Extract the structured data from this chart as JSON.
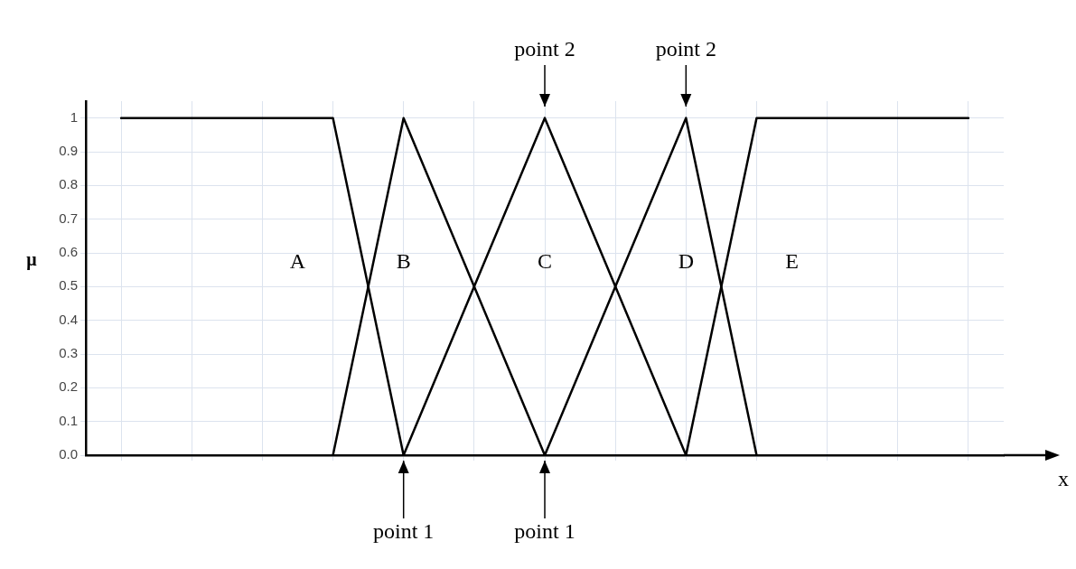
{
  "chart_data": {
    "type": "line",
    "xlabel": "x",
    "ylabel": "μ",
    "categories": [
      null,
      null,
      null,
      null,
      null,
      null,
      null,
      null,
      null,
      null,
      null,
      null,
      null
    ],
    "ylim": [
      0,
      1.05
    ],
    "yticks": [
      {
        "value": 0,
        "label": "0.0"
      },
      0.1,
      0.2,
      0.3,
      0.4,
      0.5,
      0.6,
      0.7,
      0.8,
      0.9,
      1
    ],
    "tick_labels": "y",
    "grid": true,
    "line_style": "solid",
    "series": [
      {
        "name": "A",
        "color": "#000000",
        "values": [
          1,
          1,
          1,
          1,
          0,
          null,
          null,
          null,
          null,
          null,
          null,
          null,
          null
        ]
      },
      {
        "name": "B",
        "color": "#000000",
        "values": [
          null,
          null,
          null,
          0,
          1,
          0.5,
          0,
          null,
          null,
          null,
          null,
          null,
          null
        ]
      },
      {
        "name": "C",
        "color": "#000000",
        "values": [
          null,
          null,
          null,
          null,
          0,
          0.5,
          1,
          0.5,
          0,
          null,
          null,
          null,
          null
        ]
      },
      {
        "name": "D",
        "color": "#000000",
        "values": [
          null,
          null,
          null,
          null,
          null,
          null,
          0,
          0.5,
          1,
          0,
          null,
          null,
          null
        ]
      },
      {
        "name": "E",
        "color": "#000000",
        "values": [
          null,
          null,
          null,
          null,
          null,
          null,
          null,
          null,
          0,
          1,
          1,
          1,
          1
        ]
      }
    ],
    "annotations": [
      "point 2",
      "point 2",
      "point 1",
      "point 1"
    ]
  }
}
